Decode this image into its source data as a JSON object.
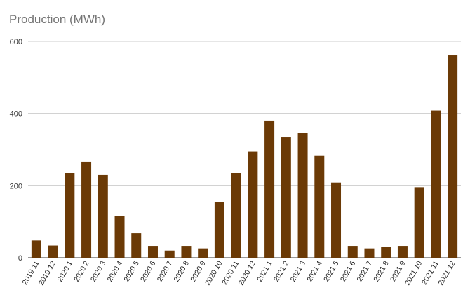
{
  "chart_data": {
    "type": "bar",
    "title": "Production (MWh)",
    "xlabel": "",
    "ylabel": "",
    "ylim": [
      0,
      600
    ],
    "yticks": [
      0,
      200,
      400,
      600
    ],
    "grid": true,
    "legend": "none",
    "bar_color": "#6b3a06",
    "categories": [
      "2019 11",
      "2019 12",
      "2020 1",
      "2020 2",
      "2020 3",
      "2020 4",
      "2020 5",
      "2020 6",
      "2020 7",
      "2020 8",
      "2020 9",
      "2020 10",
      "2020 11",
      "2020 12",
      "2021 1",
      "2021 2",
      "2021 3",
      "2021 4",
      "2021 5",
      "2021 6",
      "2021 7",
      "2021 8",
      "2021 9",
      "2021 10",
      "2021 11",
      "2021 12"
    ],
    "values": [
      48,
      34,
      235,
      267,
      230,
      115,
      68,
      33,
      20,
      33,
      26,
      154,
      235,
      295,
      380,
      335,
      345,
      283,
      209,
      33,
      26,
      31,
      33,
      196,
      408,
      561
    ]
  }
}
